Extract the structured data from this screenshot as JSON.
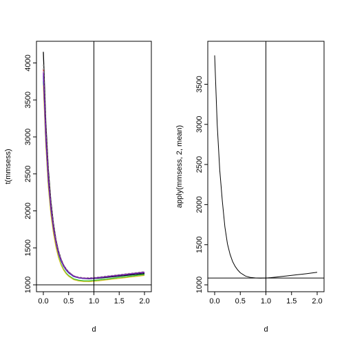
{
  "chart_data": [
    {
      "type": "line",
      "title": "",
      "xlabel": "d",
      "ylabel": "t(mmsess)",
      "xlim": [
        0.0,
        2.0
      ],
      "ylim": [
        1000,
        4200
      ],
      "xticks": [
        0.0,
        0.5,
        1.0,
        1.5,
        2.0
      ],
      "xtick_labels": [
        "0.0",
        "0.5",
        "1.0",
        "1.5",
        "2.0"
      ],
      "yticks": [
        1000,
        1500,
        2000,
        2500,
        3000,
        3500,
        4000
      ],
      "ytick_labels": [
        "1000",
        "1500",
        "2000",
        "2500",
        "3000",
        "3500",
        "4000"
      ],
      "grid": false,
      "legend": "none",
      "reference_lines": {
        "vertical_x": 1.0,
        "horizontal_y": 1000
      },
      "x": [
        0.0,
        0.05,
        0.1,
        0.15,
        0.2,
        0.25,
        0.3,
        0.35,
        0.4,
        0.45,
        0.5,
        0.6,
        0.7,
        0.8,
        0.9,
        1.0,
        1.1,
        1.2,
        1.3,
        1.4,
        1.5,
        1.6,
        1.7,
        1.8,
        1.9,
        2.0
      ],
      "series_colors": [
        "#000000",
        "#e0282e",
        "#1fbd2a",
        "#2743e6",
        "#13c8d8",
        "#d62bd2",
        "#d6c12b",
        "#8a8a8a",
        "#1a1a8a",
        "#7a1fb8"
      ],
      "series": [
        {
          "values": [
            4150,
            3180,
            2560,
            2130,
            1830,
            1610,
            1460,
            1350,
            1270,
            1215,
            1175,
            1120,
            1095,
            1085,
            1082,
            1085,
            1090,
            1097,
            1104,
            1111,
            1118,
            1125,
            1132,
            1139,
            1146,
            1152
          ]
        },
        {
          "values": [
            3920,
            3050,
            2470,
            2070,
            1790,
            1590,
            1440,
            1340,
            1265,
            1210,
            1170,
            1120,
            1100,
            1092,
            1090,
            1095,
            1102,
            1110,
            1118,
            1127,
            1135,
            1143,
            1151,
            1159,
            1167,
            1175
          ]
        },
        {
          "values": [
            3750,
            2900,
            2340,
            1970,
            1710,
            1520,
            1380,
            1280,
            1210,
            1160,
            1125,
            1080,
            1062,
            1055,
            1055,
            1060,
            1067,
            1075,
            1083,
            1091,
            1099,
            1107,
            1115,
            1123,
            1131,
            1139
          ]
        },
        {
          "values": [
            3850,
            2980,
            2420,
            2030,
            1760,
            1570,
            1430,
            1330,
            1255,
            1202,
            1165,
            1115,
            1095,
            1087,
            1086,
            1090,
            1097,
            1105,
            1113,
            1121,
            1129,
            1137,
            1145,
            1153,
            1161,
            1168
          ]
        },
        {
          "values": [
            3800,
            2950,
            2390,
            2010,
            1750,
            1560,
            1420,
            1322,
            1250,
            1198,
            1160,
            1112,
            1093,
            1086,
            1085,
            1089,
            1096,
            1104,
            1112,
            1120,
            1128,
            1136,
            1144,
            1152,
            1160,
            1167
          ]
        },
        {
          "values": [
            3890,
            3010,
            2440,
            2050,
            1775,
            1580,
            1435,
            1335,
            1260,
            1207,
            1168,
            1118,
            1097,
            1089,
            1088,
            1092,
            1099,
            1107,
            1115,
            1123,
            1131,
            1139,
            1147,
            1155,
            1163,
            1170
          ]
        },
        {
          "values": [
            3700,
            2870,
            2320,
            1950,
            1695,
            1505,
            1368,
            1270,
            1200,
            1150,
            1115,
            1070,
            1052,
            1045,
            1044,
            1048,
            1055,
            1063,
            1071,
            1079,
            1087,
            1095,
            1103,
            1111,
            1119,
            1127
          ]
        },
        {
          "values": [
            3980,
            3090,
            2500,
            2095,
            1805,
            1600,
            1452,
            1348,
            1270,
            1214,
            1174,
            1124,
            1104,
            1096,
            1095,
            1099,
            1106,
            1114,
            1122,
            1130,
            1138,
            1146,
            1154,
            1162,
            1170,
            1178
          ]
        },
        {
          "values": [
            3830,
            2960,
            2400,
            2020,
            1755,
            1565,
            1425,
            1326,
            1252,
            1200,
            1162,
            1113,
            1094,
            1086,
            1085,
            1089,
            1096,
            1104,
            1112,
            1120,
            1128,
            1136,
            1144,
            1152,
            1160,
            1166
          ]
        },
        {
          "values": [
            3870,
            3000,
            2430,
            2040,
            1770,
            1575,
            1432,
            1332,
            1258,
            1205,
            1167,
            1117,
            1096,
            1088,
            1087,
            1091,
            1098,
            1106,
            1114,
            1122,
            1130,
            1138,
            1146,
            1154,
            1162,
            1169
          ]
        }
      ]
    },
    {
      "type": "line",
      "title": "",
      "xlabel": "d",
      "ylabel": "apply(mmsess, 2, mean)",
      "xlim": [
        0.0,
        2.0
      ],
      "ylim": [
        1000,
        3950
      ],
      "xticks": [
        0.0,
        0.5,
        1.0,
        1.5,
        2.0
      ],
      "xtick_labels": [
        "0.0",
        "0.5",
        "1.0",
        "1.5",
        "2.0"
      ],
      "yticks": [
        1000,
        1500,
        2000,
        2500,
        3000,
        3500
      ],
      "ytick_labels": [
        "1000",
        "1500",
        "2000",
        "2500",
        "3000",
        "3500"
      ],
      "grid": false,
      "legend": "none",
      "reference_lines": {
        "vertical_x": 1.0,
        "horizontal_y": 1085
      },
      "x": [
        0.0,
        0.05,
        0.1,
        0.15,
        0.2,
        0.25,
        0.3,
        0.35,
        0.4,
        0.45,
        0.5,
        0.6,
        0.7,
        0.8,
        0.9,
        1.0,
        1.1,
        1.2,
        1.3,
        1.4,
        1.5,
        1.6,
        1.7,
        1.8,
        1.9,
        2.0
      ],
      "series_colors": [
        "#000000"
      ],
      "series": [
        {
          "values": [
            3860,
            3000,
            2430,
            2040,
            1720,
            1510,
            1380,
            1290,
            1230,
            1185,
            1150,
            1110,
            1092,
            1086,
            1084,
            1085,
            1090,
            1097,
            1104,
            1111,
            1118,
            1125,
            1132,
            1140,
            1148,
            1157
          ]
        }
      ]
    }
  ]
}
